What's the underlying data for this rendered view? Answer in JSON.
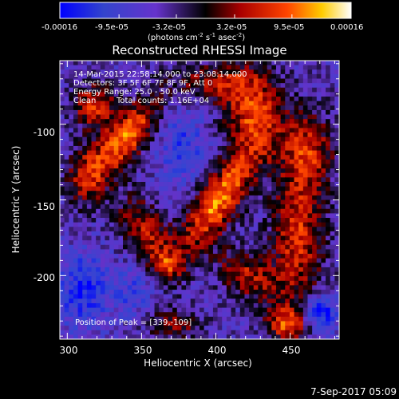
{
  "chart_data": {
    "type": "heatmap",
    "title": "Reconstructed RHESSI Image",
    "xlabel": "Heliocentric X (arcsec)",
    "ylabel": "Heliocentric Y (arcsec)",
    "xlim": [
      295,
      483
    ],
    "ylim": [
      -242,
      -58
    ],
    "x_ticks": [
      "300",
      "350",
      "400",
      "450"
    ],
    "y_ticks": [
      "-100",
      "-150",
      "-200"
    ],
    "colorbar": {
      "range": [
        -0.00016,
        0.00016
      ],
      "ticks": [
        "-0.00016",
        "-9.5e-05",
        "-3.2e-05",
        "3.2e-05",
        "9.5e-05",
        "0.00016"
      ],
      "units_prefix": "(photons cm",
      "units_sup1": "-2",
      "units_mid": " s",
      "units_sup2": "-1",
      "units_suffix": " asec",
      "units_sup3": "-2",
      "units_close": ")"
    },
    "annotations": {
      "time_range": "14-Mar-2015 22:58:14.000 to 23:08:14.000",
      "detectors": "Detectors: 3F 5F 6F 7F 8F 9F, Att 0",
      "energy": "Energy Range: 25.0 - 50.0 keV",
      "method": "Clean",
      "counts": "Total counts: 1.16E+04",
      "peak": "Position of Peak = [339,-109]"
    },
    "peak_position": [
      339,
      -109
    ],
    "blobs": [
      {
        "x": 402,
        "y": -150,
        "amplitude": 0.00016,
        "sx": 10,
        "sy": 28,
        "angle": -35
      },
      {
        "x": 339,
        "y": -109,
        "amplitude": 0.00016,
        "sx": 9,
        "sy": 22,
        "angle": -40
      },
      {
        "x": 318,
        "y": -88,
        "amplitude": 0.00012,
        "sx": 10,
        "sy": 10,
        "angle": 0
      },
      {
        "x": 425,
        "y": -92,
        "amplitude": 0.00013,
        "sx": 14,
        "sy": 20,
        "angle": 10
      },
      {
        "x": 462,
        "y": -118,
        "amplitude": 0.00011,
        "sx": 12,
        "sy": 18,
        "angle": 0
      },
      {
        "x": 455,
        "y": -175,
        "amplitude": 0.00012,
        "sx": 12,
        "sy": 30,
        "angle": 0
      },
      {
        "x": 352,
        "y": -170,
        "amplitude": 0.0001,
        "sx": 10,
        "sy": 18,
        "angle": 30
      },
      {
        "x": 313,
        "y": -135,
        "amplitude": 9e-05,
        "sx": 9,
        "sy": 14,
        "angle": 0
      },
      {
        "x": 422,
        "y": -200,
        "amplitude": 0.0001,
        "sx": 16,
        "sy": 10,
        "angle": -30
      },
      {
        "x": 448,
        "y": -232,
        "amplitude": 0.00013,
        "sx": 10,
        "sy": 8,
        "angle": 0
      },
      {
        "x": 372,
        "y": -232,
        "amplitude": 8e-05,
        "sx": 12,
        "sy": 8,
        "angle": 0
      },
      {
        "x": 398,
        "y": -72,
        "amplitude": 8e-05,
        "sx": 20,
        "sy": 8,
        "angle": 0
      },
      {
        "x": 367,
        "y": -194,
        "amplitude": 9e-05,
        "sx": 8,
        "sy": 8,
        "angle": 0
      },
      {
        "x": 345,
        "y": -210,
        "amplitude": -5e-05,
        "sx": 12,
        "sy": 12,
        "angle": 0
      },
      {
        "x": 378,
        "y": -115,
        "amplitude": -6e-05,
        "sx": 12,
        "sy": 18,
        "angle": 0
      },
      {
        "x": 310,
        "y": -210,
        "amplitude": -8e-05,
        "sx": 12,
        "sy": 18,
        "angle": 0
      },
      {
        "x": 470,
        "y": -225,
        "amplitude": -0.00012,
        "sx": 8,
        "sy": 8,
        "angle": 0
      }
    ]
  },
  "footer": {
    "date_stamp": "7-Sep-2017 05:09"
  }
}
